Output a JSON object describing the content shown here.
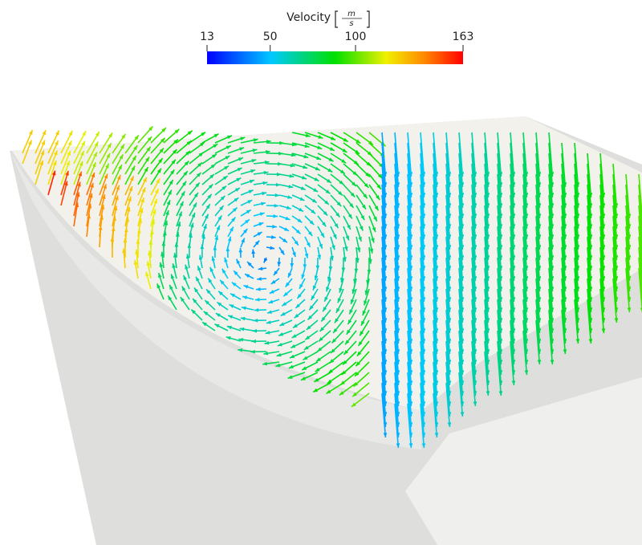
{
  "colorbar": {
    "label": "Velocity",
    "unit": {
      "numerator": "m",
      "denominator": "s"
    },
    "range": [
      13,
      163
    ],
    "ticks": [
      13,
      50,
      100,
      163
    ]
  }
}
